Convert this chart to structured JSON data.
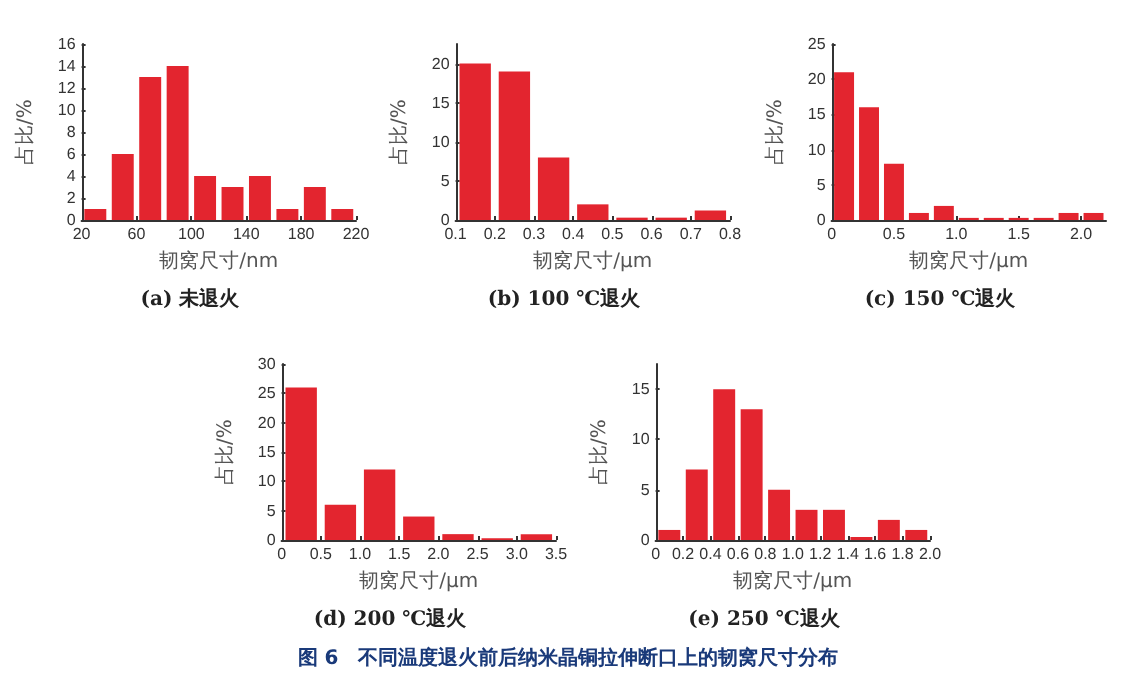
{
  "chart_data": [
    {
      "type": "histogram",
      "title": "(a) 未退火",
      "xlabel": "韧窝尺寸/nm",
      "ylabel": "占比/%",
      "bins": [
        20,
        40,
        60,
        80,
        100,
        120,
        140,
        160,
        180,
        200,
        220
      ],
      "values": [
        1,
        6,
        13,
        14,
        4,
        3,
        4,
        1,
        3,
        1
      ],
      "color": "#e3252f",
      "xlim": [
        20,
        220
      ],
      "xticks": [
        20,
        60,
        100,
        140,
        180,
        220
      ],
      "ylim": [
        0,
        16
      ],
      "yticks": [
        0,
        2,
        4,
        6,
        8,
        10,
        12,
        14,
        16
      ],
      "annotations": [
        "图 6　不同温度退火前后纳米晶铜拉伸断口上的韧窝尺寸分布"
      ]
    },
    {
      "type": "histogram",
      "title": "(b) 100 ℃退火",
      "xlabel": "韧窝尺寸/μm",
      "ylabel": "占比/%",
      "bins": [
        0.1,
        0.2,
        0.3,
        0.4,
        0.5,
        0.6,
        0.7,
        0.8
      ],
      "values": [
        20,
        19,
        8,
        2,
        0.3,
        0.3,
        1.2
      ],
      "color": "#e3252f",
      "xlim": [
        0.1,
        0.8
      ],
      "xticks": [
        0.1,
        0.2,
        0.3,
        0.4,
        0.5,
        0.6,
        0.7,
        0.8
      ],
      "ylim": [
        0,
        22.5
      ],
      "yticks": [
        0,
        5,
        10,
        15,
        20
      ]
    },
    {
      "type": "histogram",
      "title": "(c) 150 ℃退火",
      "xlabel": "韧窝尺寸/μm",
      "ylabel": "占比/%",
      "bins": [
        0,
        0.2,
        0.4,
        0.6,
        0.8,
        1.0,
        1.2,
        1.4,
        1.6,
        1.8,
        2.0,
        2.2
      ],
      "values": [
        21,
        16,
        8,
        1,
        2,
        0.3,
        0.3,
        0.3,
        0.3,
        1,
        1
      ],
      "color": "#e3252f",
      "xlim": [
        0,
        2.2
      ],
      "xticks": [
        0,
        0.5,
        {
          "value": 1,
          "label": "1.0"
        },
        1.5,
        {
          "value": 2,
          "label": "2.0"
        }
      ],
      "ylim": [
        0,
        25
      ],
      "yticks": [
        0,
        5,
        10,
        15,
        20,
        25
      ]
    },
    {
      "type": "histogram",
      "title": "(d) 200 ℃退火",
      "xlabel": "韧窝尺寸/μm",
      "ylabel": "占比/%",
      "bins": [
        0,
        0.5,
        1.0,
        1.5,
        2.0,
        2.5,
        3.0,
        3.5
      ],
      "values": [
        26,
        6,
        12,
        4,
        1,
        0.3,
        1
      ],
      "color": "#e3252f",
      "xlim": [
        0,
        3.5
      ],
      "xticks": [
        0,
        0.5,
        {
          "value": 1,
          "label": "1.0"
        },
        1.5,
        {
          "value": 2,
          "label": "2.0"
        },
        2.5,
        {
          "value": 3,
          "label": "3.0"
        },
        3.5
      ],
      "ylim": [
        0,
        30
      ],
      "yticks": [
        0,
        5,
        10,
        15,
        20,
        25,
        30
      ]
    },
    {
      "type": "histogram",
      "title": "(e) 250 ℃退火",
      "xlabel": "韧窝尺寸/μm",
      "ylabel": "占比/%",
      "bins": [
        0,
        0.2,
        0.4,
        0.6,
        0.8,
        1.0,
        1.2,
        1.4,
        1.6,
        1.8,
        2.0
      ],
      "values": [
        1,
        7,
        15,
        13,
        5,
        3,
        3,
        0.3,
        2,
        1
      ],
      "color": "#e3252f",
      "xlim": [
        0,
        2
      ],
      "xticks": [
        0,
        0.2,
        0.4,
        0.6,
        0.8,
        {
          "value": 1,
          "label": "1.0"
        },
        1.2,
        1.4,
        1.6,
        1.8,
        {
          "value": 2,
          "label": "2.0"
        }
      ],
      "ylim": [
        0,
        17.5
      ],
      "yticks": [
        0,
        5,
        10,
        15
      ]
    }
  ]
}
